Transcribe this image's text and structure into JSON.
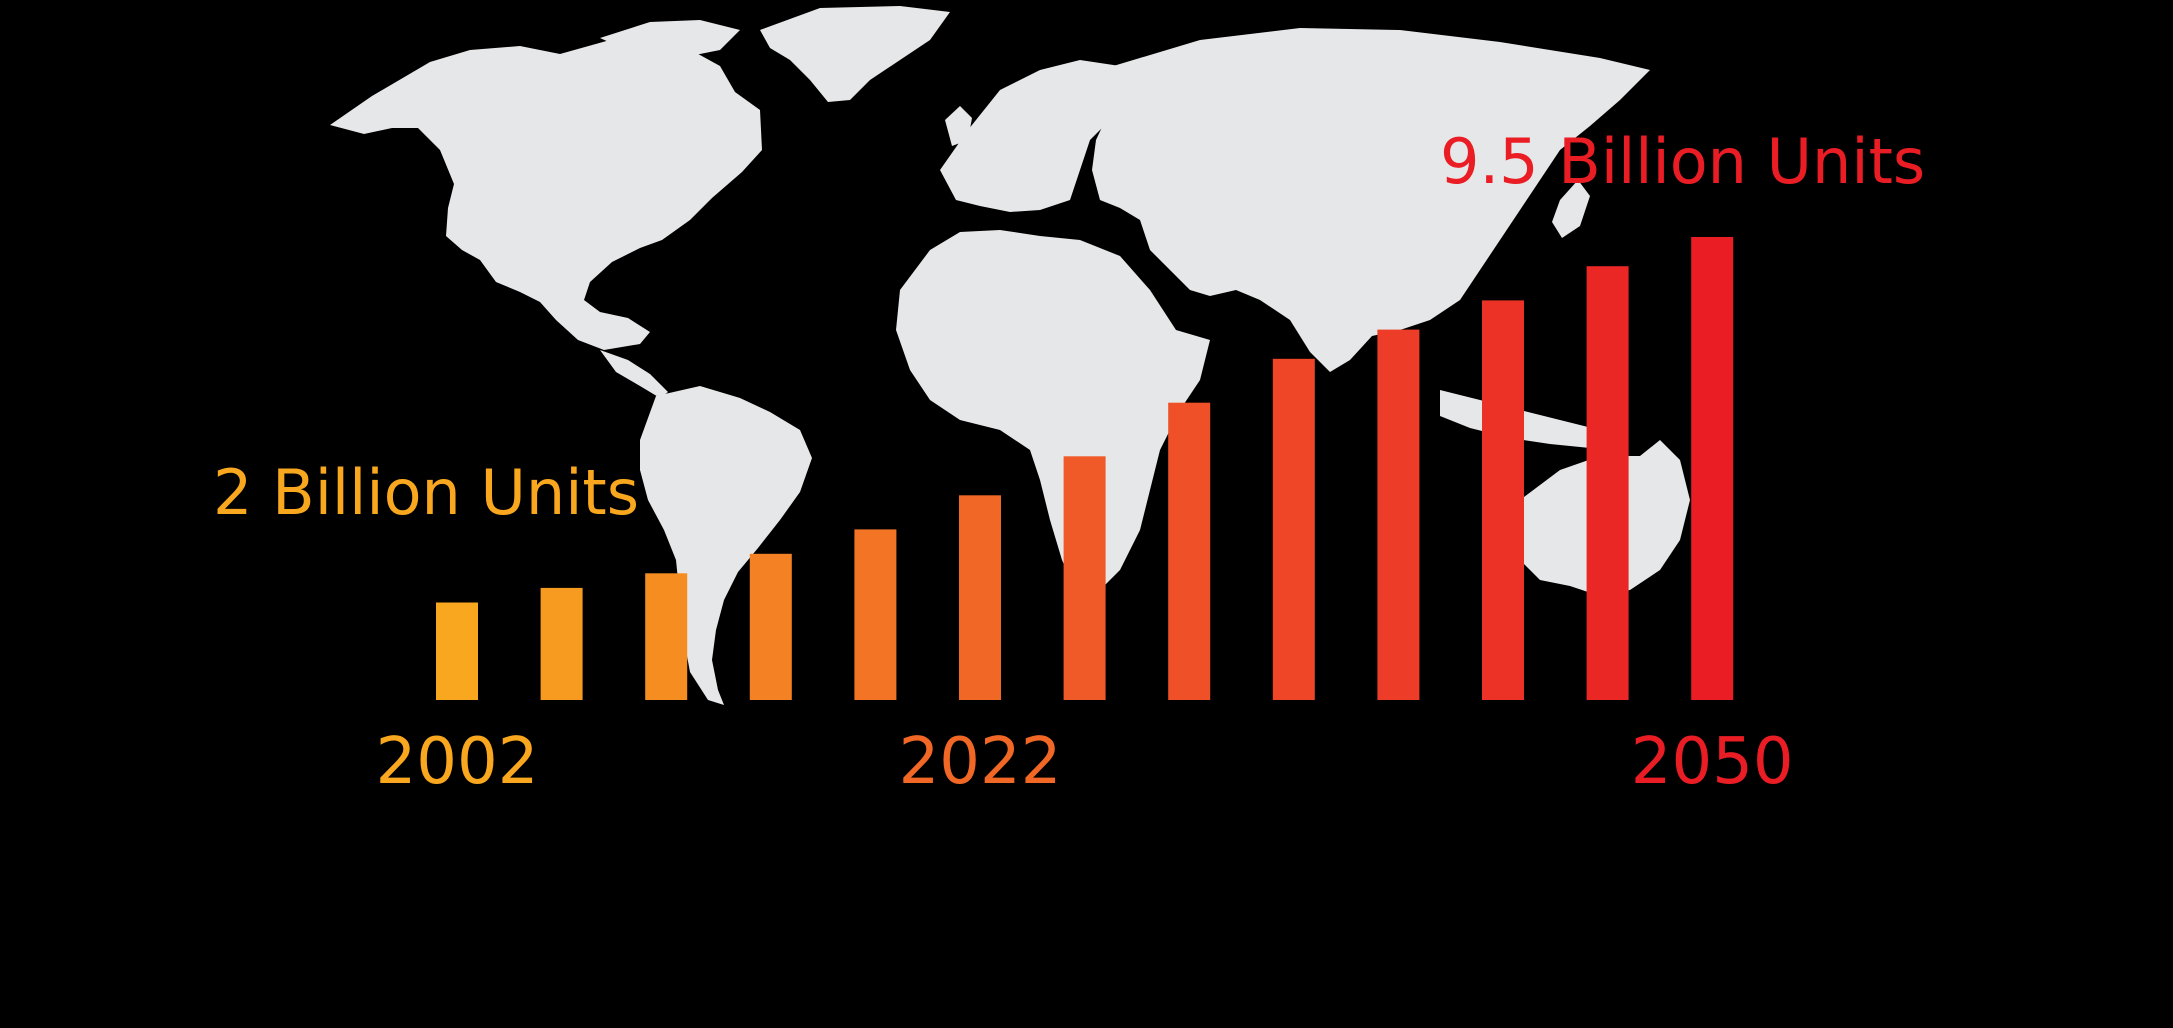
{
  "chart_data": {
    "type": "bar",
    "categories": [
      "2002",
      "",
      "",
      "",
      "",
      "2022",
      "",
      "",
      "",
      "",
      "",
      "",
      "2050"
    ],
    "values": [
      2.0,
      2.3,
      2.6,
      3.0,
      3.5,
      4.2,
      5.0,
      6.1,
      7.0,
      7.6,
      8.2,
      8.9,
      9.5
    ],
    "unit": "Billion Units",
    "x_tick_labels": [
      "2002",
      "2022",
      "2050"
    ],
    "annotations": {
      "start": "2 Billion Units",
      "end": "9.5 Billion Units"
    },
    "ylim": [
      0,
      9.5
    ],
    "grid": false,
    "legend": "none",
    "title": "",
    "xlabel": "",
    "ylabel": "",
    "background_graphic": "world-map",
    "colors": {
      "background": "#000000",
      "map": "#e6e7e8",
      "start": "#f8a71e",
      "mid": "#f05a28",
      "end": "#ea1d25"
    }
  }
}
